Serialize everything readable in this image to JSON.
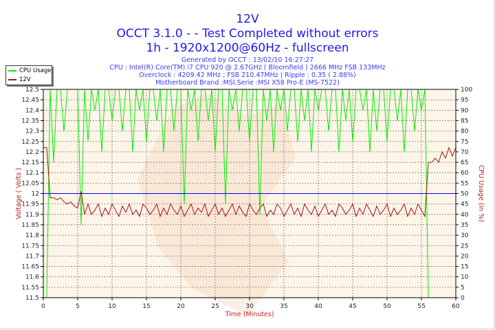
{
  "header": {
    "title": "12V",
    "subtitle1": "OCCT 3.1.0 -  - Test Completed without errors",
    "subtitle2": "1h - 1920x1200@60Hz - fullscreen",
    "generated": "Generated by OCCT : 13/02/10 16:27:27",
    "cpu": "CPU : Intel(R) Core(TM) i7 CPU 920 @ 2.67GHz ( Bloomfield ) 2666 MHz FSB 133MHz",
    "overclock": "Overclock : 4209.42 MHz ; FSB 210.47MHz | Ripple : 0.35 ( 2.88%)",
    "motherboard": "Motherboard Brand :MSI,Serie :MSI X58 Pro-E (MS-7522)"
  },
  "legend": [
    {
      "label": "CPU Usage",
      "color": "#00ee00"
    },
    {
      "label": "12V",
      "color": "#aa1111"
    }
  ],
  "chart_data": {
    "type": "line",
    "xlabel": "Time (Minutes)",
    "ylabel": "Voltage ( Volts )",
    "y2label": "CPU Usage (in %)",
    "xlim": [
      0,
      60
    ],
    "ylim": [
      11.5,
      12.5
    ],
    "y2lim": [
      0,
      100
    ],
    "xticks": [
      0,
      5,
      10,
      15,
      20,
      25,
      30,
      35,
      40,
      45,
      50,
      55,
      60
    ],
    "yticks": [
      "11.5",
      "11.55",
      "11.6",
      "11.65",
      "11.7",
      "11.75",
      "11.8",
      "11.85",
      "11.9",
      "11.95",
      "12",
      "12.05",
      "12.1",
      "12.15",
      "12.2",
      "12.25",
      "12.3",
      "12.35",
      "12.4",
      "12.45",
      "12.5"
    ],
    "y2ticks": [
      0,
      5,
      10,
      15,
      20,
      25,
      30,
      35,
      40,
      45,
      50,
      55,
      60,
      65,
      70,
      75,
      80,
      85,
      90,
      95,
      100
    ],
    "grid": true,
    "legend_position": "top-left",
    "reference_line": {
      "value": 12,
      "color": "#0000ff"
    },
    "x_start": 0,
    "x_step": 0.5,
    "series": [
      {
        "name": "12V",
        "axis": "left",
        "color": "#aa1111",
        "values": [
          12.22,
          12.22,
          11.98,
          11.98,
          11.97,
          11.98,
          11.96,
          11.95,
          11.96,
          11.94,
          11.93,
          12.01,
          11.9,
          11.95,
          11.9,
          11.92,
          11.95,
          11.89,
          11.93,
          11.9,
          11.95,
          11.92,
          11.89,
          11.94,
          11.91,
          11.95,
          11.9,
          11.92,
          11.89,
          11.95,
          11.93,
          11.9,
          11.92,
          11.95,
          11.89,
          11.93,
          11.9,
          11.95,
          11.92,
          11.9,
          11.94,
          11.89,
          11.92,
          11.95,
          11.9,
          11.93,
          11.91,
          11.95,
          11.89,
          11.92,
          11.95,
          11.9,
          11.93,
          11.89,
          11.92,
          11.95,
          11.9,
          11.94,
          11.91,
          11.89,
          11.95,
          11.92,
          11.9,
          11.93,
          11.95,
          11.89,
          11.92,
          11.9,
          11.95,
          11.93,
          11.89,
          11.92,
          11.95,
          11.9,
          11.93,
          11.89,
          11.95,
          11.92,
          11.9,
          11.94,
          11.89,
          11.92,
          11.95,
          11.9,
          11.92,
          11.89,
          11.95,
          11.93,
          11.9,
          11.92,
          11.95,
          11.89,
          11.93,
          11.9,
          11.95,
          11.92,
          11.89,
          11.94,
          11.9,
          11.92,
          11.95,
          11.89,
          11.93,
          11.9,
          11.92,
          11.95,
          11.89,
          11.93,
          11.9,
          11.95,
          11.92,
          11.89,
          12.15,
          12.15,
          12.17,
          12.15,
          12.2,
          12.17,
          12.22,
          12.18,
          12.22
        ]
      },
      {
        "name": "CPU Usage",
        "axis": "right",
        "color": "#00ee00",
        "values": [
          0,
          0,
          100,
          65,
          100,
          100,
          80,
          100,
          100,
          100,
          100,
          35,
          100,
          75,
          100,
          90,
          100,
          70,
          100,
          100,
          85,
          100,
          100,
          80,
          100,
          100,
          70,
          100,
          90,
          100,
          75,
          100,
          100,
          85,
          100,
          70,
          100,
          100,
          80,
          100,
          100,
          45,
          100,
          90,
          100,
          75,
          100,
          100,
          85,
          100,
          70,
          100,
          100,
          45,
          100,
          90,
          100,
          80,
          100,
          100,
          75,
          100,
          100,
          40,
          100,
          85,
          100,
          70,
          100,
          90,
          100,
          80,
          100,
          100,
          75,
          100,
          85,
          100,
          70,
          100,
          90,
          100,
          100,
          80,
          100,
          100,
          70,
          100,
          85,
          100,
          75,
          100,
          100,
          90,
          100,
          70,
          100,
          80,
          100,
          100,
          75,
          100,
          100,
          85,
          100,
          70,
          100,
          100,
          80,
          100,
          90,
          100,
          0,
          0,
          0,
          0,
          0,
          0,
          0,
          0,
          0
        ]
      }
    ]
  }
}
